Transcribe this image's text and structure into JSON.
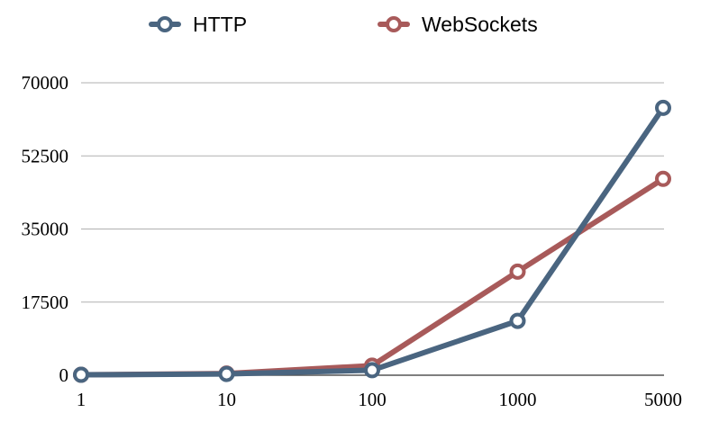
{
  "chart_data": {
    "type": "line",
    "categories": [
      "1",
      "10",
      "100",
      "1000",
      "5000"
    ],
    "ylim": [
      0,
      70000
    ],
    "yticks": [
      "0",
      "17500",
      "35000",
      "52500",
      "70000"
    ],
    "grid": true,
    "legend_position": "top",
    "series": [
      {
        "name": "HTTP",
        "color": "#4a6580",
        "values": [
          100,
          300,
          1200,
          13000,
          64000
        ]
      },
      {
        "name": "WebSockets",
        "color": "#a85a5a",
        "values": [
          100,
          400,
          2300,
          24800,
          47000
        ]
      }
    ]
  }
}
